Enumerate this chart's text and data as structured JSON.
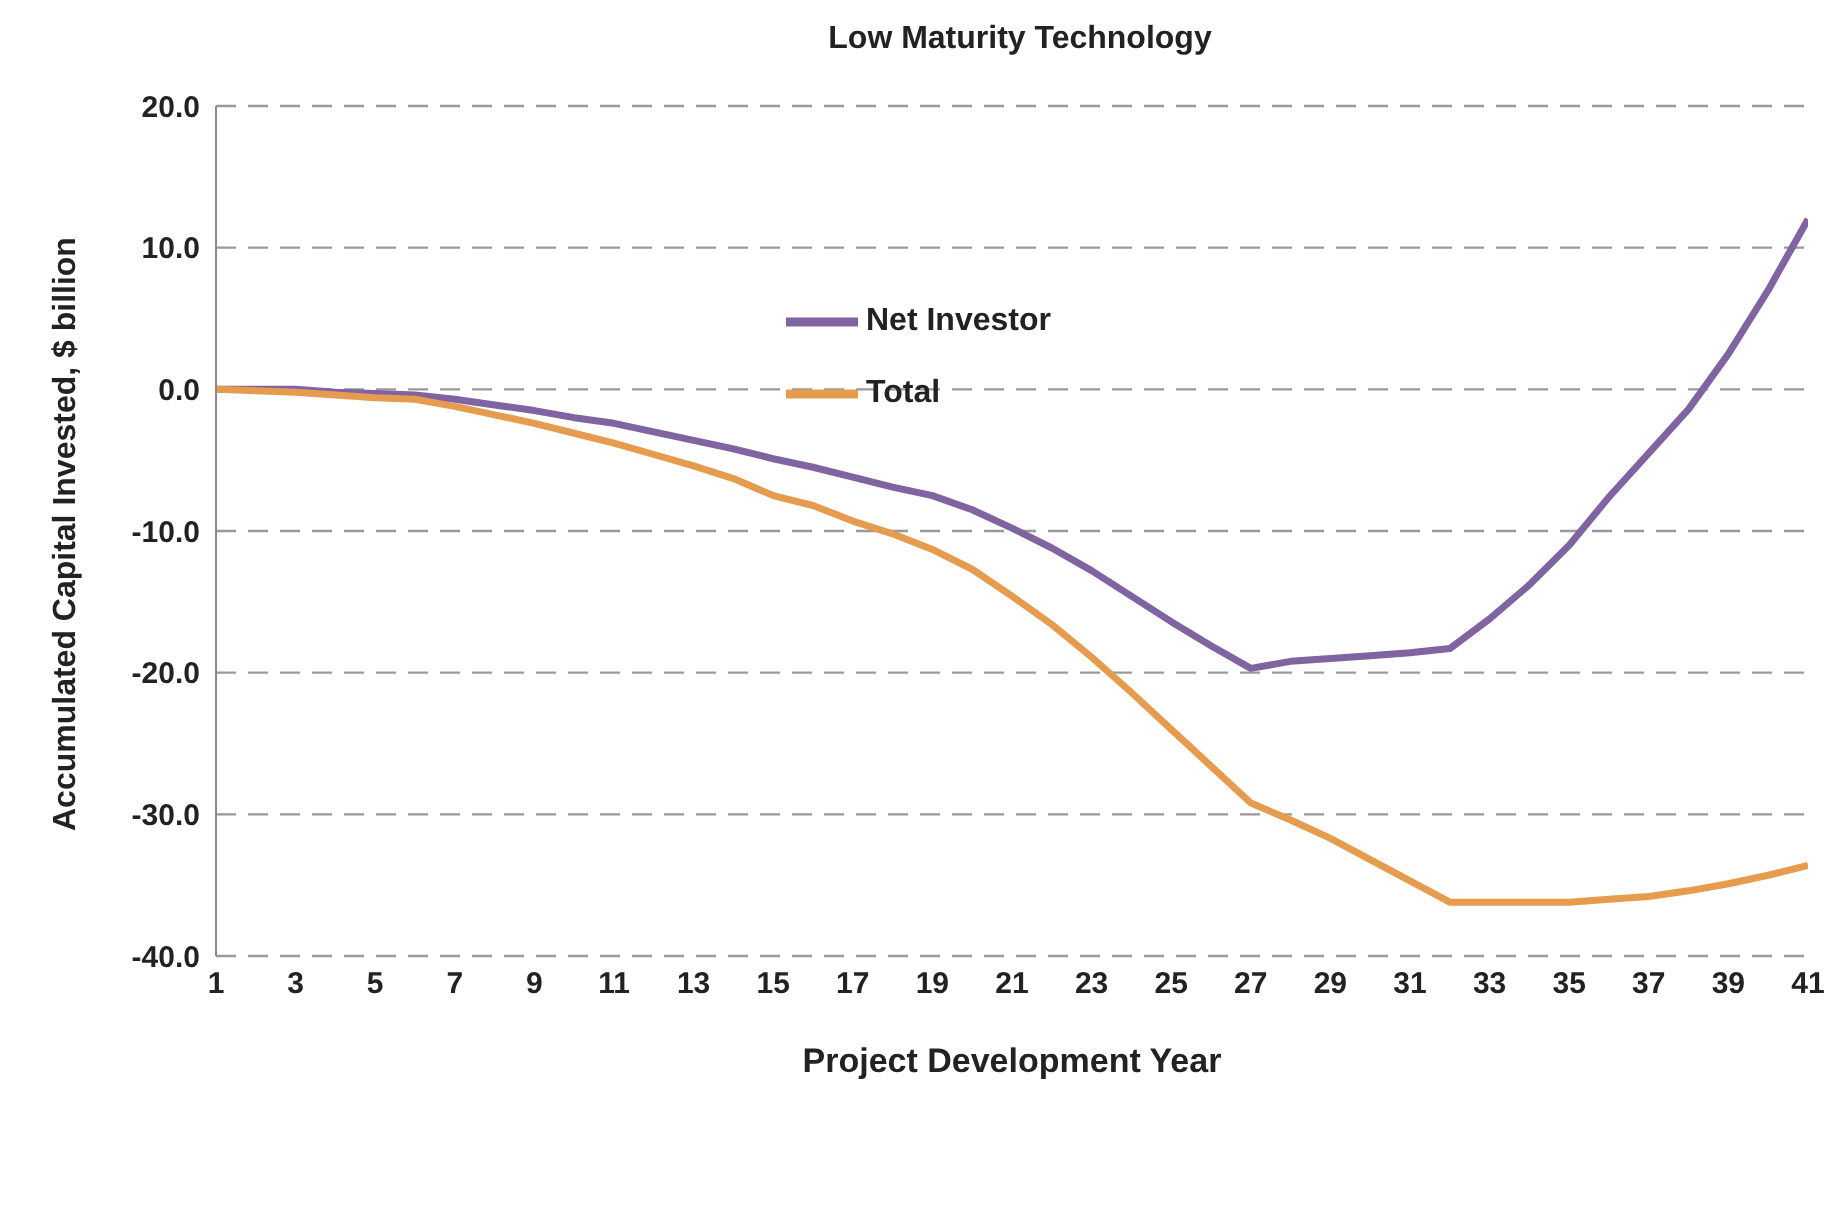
{
  "chart_data": {
    "type": "line",
    "title": "Low Maturity Technology",
    "xlabel": "Project Development Year",
    "ylabel": "Accumulated Capital Invested, $ billion",
    "x": [
      1,
      2,
      3,
      4,
      5,
      6,
      7,
      8,
      9,
      10,
      11,
      12,
      13,
      14,
      15,
      16,
      17,
      18,
      19,
      20,
      21,
      22,
      23,
      24,
      25,
      26,
      27,
      28,
      29,
      30,
      31,
      32,
      33,
      34,
      35,
      36,
      37,
      38,
      39,
      40,
      41
    ],
    "xlim": [
      1,
      41
    ],
    "xticks": [
      1,
      3,
      5,
      7,
      9,
      11,
      13,
      15,
      17,
      19,
      21,
      23,
      25,
      27,
      29,
      31,
      33,
      35,
      37,
      39,
      41
    ],
    "series": [
      {
        "name": "Net Investor",
        "color": "#8064a2",
        "values": [
          0,
          0,
          0,
          -0.2,
          -0.3,
          -0.4,
          -0.7,
          -1.1,
          -1.5,
          -2.0,
          -2.4,
          -3.0,
          -3.6,
          -4.2,
          -4.9,
          -5.5,
          -6.2,
          -6.9,
          -7.5,
          -8.5,
          -9.8,
          -11.2,
          -12.8,
          -14.6,
          -16.4,
          -18.1,
          -19.7,
          -19.2,
          -19.0,
          -18.8,
          -18.6,
          -18.3,
          -16.2,
          -13.8,
          -11.0,
          -7.6,
          -4.5,
          -1.4,
          2.5,
          7.0,
          12.0
        ]
      },
      {
        "name": "Total",
        "color": "#e59c4f",
        "values": [
          0,
          -0.1,
          -0.2,
          -0.4,
          -0.6,
          -0.7,
          -1.2,
          -1.8,
          -2.4,
          -3.1,
          -3.8,
          -4.6,
          -5.4,
          -6.3,
          -7.5,
          -8.2,
          -9.3,
          -10.2,
          -11.3,
          -12.7,
          -14.6,
          -16.6,
          -18.9,
          -21.4,
          -24.0,
          -26.6,
          -29.2,
          -30.4,
          -31.7,
          -33.2,
          -34.7,
          -36.2,
          -36.2,
          -36.2,
          -36.2,
          -36.0,
          -35.8,
          -35.4,
          -34.9,
          -34.3,
          -33.6
        ]
      }
    ],
    "ylim": [
      -40,
      20
    ],
    "yticks": [
      {
        "value": -40,
        "label": "-40.0"
      },
      {
        "value": -30,
        "label": "-30.0"
      },
      {
        "value": -20,
        "label": "-20.0"
      },
      {
        "value": -10,
        "label": "-10.0"
      },
      {
        "value": 0,
        "label": "0.0"
      },
      {
        "value": 10,
        "label": "10.0"
      },
      {
        "value": 20,
        "label": "20.0"
      }
    ],
    "grid": "y",
    "legend": "top",
    "marker": "none",
    "line_style": "solid"
  }
}
